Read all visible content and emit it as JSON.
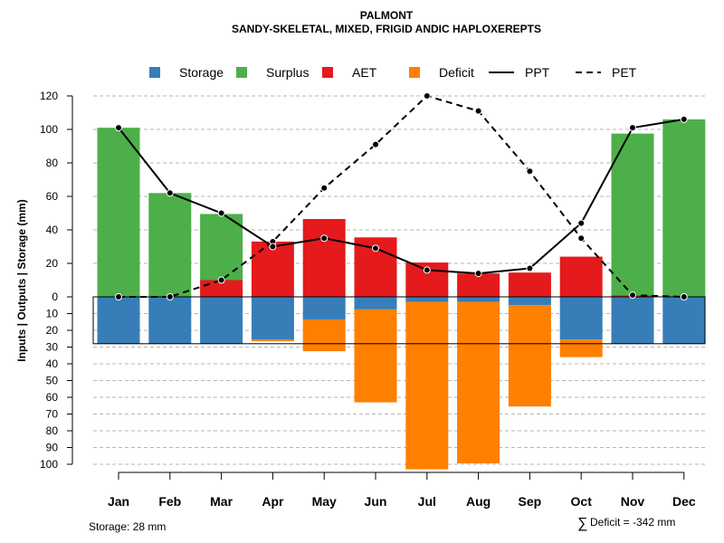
{
  "chart_data": {
    "type": "bar",
    "title": "PALMONT",
    "subtitle": "SANDY-SKELETAL, MIXED, FRIGID ANDIC HAPLOXEREPTS",
    "ylabel": "Inputs | Outputs | Storage    (mm)",
    "categories": [
      "Jan",
      "Feb",
      "Mar",
      "Apr",
      "May",
      "Jun",
      "Jul",
      "Aug",
      "Sep",
      "Oct",
      "Nov",
      "Dec"
    ],
    "upper_ylim": [
      0,
      120
    ],
    "upper_ticks": [
      "0",
      "20",
      "40",
      "60",
      "80",
      "100",
      "120"
    ],
    "lower_ylim": [
      0,
      100
    ],
    "lower_ticks": [
      "10",
      "20",
      "30",
      "40",
      "50",
      "60",
      "70",
      "80",
      "90",
      "100"
    ],
    "legend": [
      "Storage",
      "Surplus",
      "AET",
      "Deficit",
      "PPT",
      "PET"
    ],
    "colors": {
      "Storage": "#377EB8",
      "Surplus": "#4DAF4A",
      "AET": "#E41A1C",
      "Deficit": "#FF7F00",
      "PPT": "#000000",
      "PET": "#000000"
    },
    "series": [
      {
        "name": "AET",
        "values": [
          0,
          0,
          10,
          33,
          46.5,
          35.5,
          20.5,
          14,
          14.5,
          24,
          1,
          0
        ]
      },
      {
        "name": "Surplus",
        "values": [
          101,
          62,
          39.5,
          0,
          0,
          0,
          0,
          0,
          0,
          0,
          96.5,
          106
        ]
      },
      {
        "name": "Storage",
        "values": [
          28,
          28,
          28,
          25.5,
          13.5,
          7.5,
          3,
          3,
          5,
          25.5,
          28,
          28
        ]
      },
      {
        "name": "Deficit",
        "values": [
          0,
          0,
          0,
          1,
          19,
          55.5,
          100,
          96.5,
          60.5,
          10.5,
          0,
          0
        ]
      },
      {
        "name": "PPT",
        "values": [
          101,
          62,
          50,
          30,
          35,
          29,
          16,
          14,
          17,
          44,
          101,
          106
        ]
      },
      {
        "name": "PET",
        "values": [
          0,
          0,
          10,
          33,
          65,
          91,
          120,
          111,
          75,
          35,
          1,
          0
        ]
      }
    ],
    "storage_capacity": 28
  },
  "notes": {
    "storage": "Storage: 28 mm",
    "deficit_symbol": "∑",
    "deficit": "Deficit = -342 mm"
  }
}
